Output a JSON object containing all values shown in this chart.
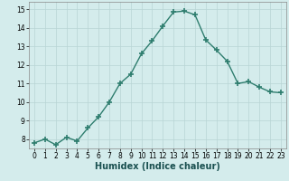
{
  "x": [
    0,
    1,
    2,
    3,
    4,
    5,
    6,
    7,
    8,
    9,
    10,
    11,
    12,
    13,
    14,
    15,
    16,
    17,
    18,
    19,
    20,
    21,
    22,
    23
  ],
  "y": [
    7.8,
    8.0,
    7.7,
    8.1,
    7.9,
    8.6,
    9.2,
    10.0,
    11.0,
    11.5,
    12.6,
    13.3,
    14.1,
    14.85,
    14.9,
    14.7,
    13.35,
    12.8,
    12.2,
    11.0,
    11.1,
    10.8,
    10.55,
    10.5
  ],
  "line_color": "#2e7d6e",
  "marker": "+",
  "marker_size": 4,
  "marker_linewidth": 1.2,
  "bg_color": "#d4ecec",
  "grid_color": "#b8d4d4",
  "xlabel": "Humidex (Indice chaleur)",
  "xlabel_fontsize": 7,
  "ylim": [
    7.5,
    15.4
  ],
  "xlim": [
    -0.5,
    23.5
  ],
  "yticks": [
    8,
    9,
    10,
    11,
    12,
    13,
    14,
    15
  ],
  "xticks": [
    0,
    1,
    2,
    3,
    4,
    5,
    6,
    7,
    8,
    9,
    10,
    11,
    12,
    13,
    14,
    15,
    16,
    17,
    18,
    19,
    20,
    21,
    22,
    23
  ],
  "tick_fontsize": 5.5,
  "linewidth": 1.0
}
